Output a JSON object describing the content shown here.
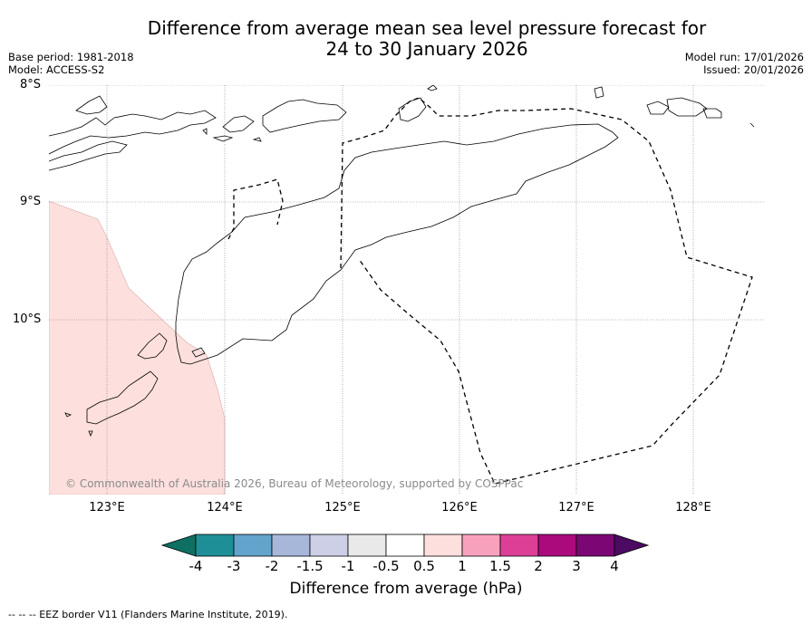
{
  "title": {
    "line1": "Difference from average mean sea level pressure forecast for",
    "line2": "24 to 30 January 2026"
  },
  "meta": {
    "base_period": "Base period: 1981-2018",
    "model": "Model: ACCESS-S2",
    "model_run": "Model run: 17/01/2026",
    "issued": "Issued: 20/01/2026"
  },
  "map": {
    "lat_labels": [
      "8°S",
      "9°S",
      "10°S"
    ],
    "lon_labels": [
      "123°E",
      "124°E",
      "125°E",
      "126°E",
      "127°E",
      "128°E"
    ],
    "shaded_region_class": "0.5 to 1",
    "shaded_color": "#fde0dd",
    "copyright": "© Commonwealth of Australia 2026, Bureau of Meteorology, supported by COSPPac"
  },
  "colorbar": {
    "colors": [
      "#0e6f63",
      "#1f8f97",
      "#62a4cb",
      "#a6b7da",
      "#cdcfe6",
      "#e9e9ea",
      "#ffffff",
      "#fde0dd",
      "#f8a1bd",
      "#dd3f96",
      "#ab0a7d",
      "#7b0775",
      "#4c0a62"
    ],
    "ticks": [
      "-4",
      "-3",
      "-2",
      "-1.5",
      "-1",
      "-0.5",
      "0.5",
      "1",
      "1.5",
      "2",
      "3",
      "4"
    ],
    "label": "Difference from average (hPa)"
  },
  "footnote": "--  --  -- EEZ border V11 (Flanders Marine Institute, 2019)."
}
